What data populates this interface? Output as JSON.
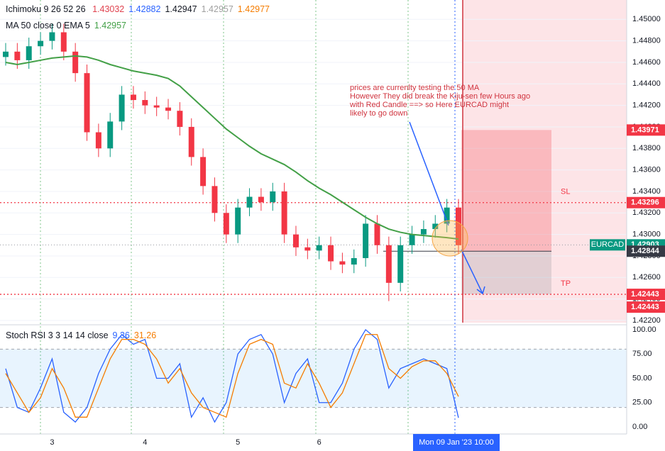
{
  "chart_data": [
    {
      "type": "candlestick",
      "categories": [
        null,
        null,
        null,
        null,
        "3",
        null,
        null,
        null,
        null,
        null,
        null,
        null,
        "4",
        null,
        null,
        null,
        null,
        null,
        null,
        null,
        "5",
        null,
        null,
        null,
        null,
        null,
        null,
        "6",
        null,
        null,
        null,
        null,
        null,
        null,
        null,
        null,
        null,
        null,
        null,
        "Mon 09 Jan '23  10:00"
      ],
      "open": [
        1.4465,
        1.447,
        1.4462,
        1.4475,
        1.448,
        1.4488,
        1.447,
        1.445,
        1.4395,
        1.438,
        1.4405,
        1.443,
        1.4425,
        1.442,
        1.4418,
        1.4415,
        1.44,
        1.4372,
        1.4345,
        1.432,
        1.43,
        1.4325,
        1.4335,
        1.433,
        1.434,
        1.43,
        1.4288,
        1.4285,
        1.429,
        1.4275,
        1.4272,
        1.4278,
        1.431,
        1.429,
        1.4255,
        1.429,
        1.43,
        1.4305,
        1.431,
        1.4325
      ],
      "high": [
        1.4478,
        1.4478,
        1.4483,
        1.4488,
        1.4496,
        1.4496,
        1.4478,
        1.4458,
        1.4403,
        1.4413,
        1.4438,
        1.4438,
        1.4433,
        1.4428,
        1.4426,
        1.4423,
        1.4408,
        1.438,
        1.4353,
        1.4328,
        1.4333,
        1.4343,
        1.4343,
        1.4348,
        1.4348,
        1.4308,
        1.4296,
        1.4298,
        1.4298,
        1.4283,
        1.4286,
        1.4318,
        1.4318,
        1.4298,
        1.4298,
        1.4308,
        1.4313,
        1.4318,
        1.4333,
        1.4333
      ],
      "low": [
        1.4457,
        1.4454,
        1.4454,
        1.4467,
        1.4472,
        1.4462,
        1.4442,
        1.4387,
        1.4372,
        1.4372,
        1.4397,
        1.4417,
        1.4412,
        1.441,
        1.4407,
        1.4392,
        1.4364,
        1.4337,
        1.4312,
        1.4292,
        1.4292,
        1.4317,
        1.4322,
        1.4322,
        1.4292,
        1.428,
        1.4277,
        1.4277,
        1.4267,
        1.4264,
        1.4264,
        1.427,
        1.4282,
        1.4238,
        1.4247,
        1.4282,
        1.4292,
        1.4297,
        1.4302,
        1.4282
      ],
      "close": [
        1.447,
        1.4462,
        1.4475,
        1.448,
        1.4488,
        1.447,
        1.445,
        1.4395,
        1.438,
        1.4405,
        1.443,
        1.4425,
        1.442,
        1.4418,
        1.4415,
        1.44,
        1.4372,
        1.4345,
        1.432,
        1.43,
        1.4325,
        1.4335,
        1.433,
        1.434,
        1.43,
        1.4288,
        1.4285,
        1.429,
        1.4275,
        1.4272,
        1.4278,
        1.431,
        1.429,
        1.4255,
        1.429,
        1.43,
        1.4305,
        1.431,
        1.4325,
        1.429
      ],
      "up_color": "#089981",
      "down_color": "#f23645",
      "series": [
        {
          "name": "MA 50 close 0 EMA 5",
          "color": "#43a047",
          "values": [
            1.446,
            1.4458,
            1.446,
            1.4462,
            1.4464,
            1.4465,
            1.4466,
            1.4465,
            1.4462,
            1.4458,
            1.4455,
            1.4452,
            1.445,
            1.4448,
            1.4445,
            1.4438,
            1.4428,
            1.4418,
            1.4408,
            1.4398,
            1.439,
            1.4382,
            1.4375,
            1.437,
            1.4365,
            1.4358,
            1.435,
            1.4343,
            1.4337,
            1.433,
            1.4323,
            1.4316,
            1.431,
            1.4305,
            1.4302,
            1.43,
            1.4299,
            1.4298,
            1.4297,
            1.42957
          ]
        }
      ],
      "ichimoku": {
        "name": "Ichimoku 9 26 52 26",
        "values": [
          1.43032,
          1.42882,
          1.42947,
          1.42957,
          1.42977
        ],
        "colors": [
          "#e0424f",
          "#2962ff",
          "#131722",
          "#a0a0a0",
          "#f57c00"
        ]
      },
      "ylim": [
        1.4216,
        1.4518
      ],
      "yticks": [
        {
          "value": 1.45,
          "label": "1.45000"
        },
        {
          "value": 1.448,
          "label": "1.44800"
        },
        {
          "value": 1.446,
          "label": "1.44600"
        },
        {
          "value": 1.444,
          "label": "1.44400"
        },
        {
          "value": 1.442,
          "label": "1.44200"
        },
        {
          "value": 1.44,
          "label": "1.44000"
        },
        {
          "value": 1.438,
          "label": "1.43800"
        },
        {
          "value": 1.436,
          "label": "1.43600"
        },
        {
          "value": 1.434,
          "label": "1.43400"
        },
        {
          "value": 1.432,
          "label": "1.43200"
        },
        {
          "value": 1.43,
          "label": "1.43000"
        },
        {
          "value": 1.428,
          "label": "1.42800"
        },
        {
          "value": 1.426,
          "label": "1.42600"
        },
        {
          "value": 1.424,
          "label": "1.42400"
        },
        {
          "value": 1.422,
          "label": "1.42200"
        }
      ],
      "levels": [
        {
          "label": "SL",
          "value": 1.43296,
          "color": "#f23645"
        },
        {
          "label": "TP",
          "value": 1.42443,
          "color": "#f23645"
        }
      ],
      "position": {
        "stop": 1.43971,
        "entry": 1.42844,
        "target": 1.42443
      },
      "price_labels": [
        {
          "value": 1.43971,
          "color": "#f23645"
        },
        {
          "value": 1.43296,
          "color": "#f23645"
        },
        {
          "name": "EURCAD",
          "value": 1.42903,
          "color": "#089981"
        },
        {
          "value": 1.42844,
          "color": "#363a45"
        },
        {
          "value": 1.42443,
          "color": "#f23645"
        },
        {
          "value": 1.42443,
          "color": "#f23645"
        }
      ],
      "annotation": [
        "prices are currenlty testing the 50 MA",
        "However They did break the Kiju-sen few Hours ago",
        "with Red Candle  ==> so Here EURCAD might",
        "likely to go down"
      ]
    },
    {
      "type": "line",
      "title": "Stoch RSI 3 3 14 14 close",
      "series": [
        {
          "color": "#2962ff",
          "values": [
            60,
            20,
            15,
            40,
            70,
            15,
            5,
            20,
            55,
            80,
            95,
            85,
            90,
            50,
            50,
            65,
            10,
            30,
            5,
            25,
            75,
            90,
            95,
            75,
            25,
            55,
            70,
            25,
            25,
            45,
            80,
            100,
            90,
            40,
            60,
            65,
            70,
            65,
            60,
            9.36
          ]
        },
        {
          "color": "#f57c00",
          "values": [
            55,
            35,
            15,
            30,
            60,
            40,
            10,
            10,
            40,
            70,
            90,
            90,
            85,
            70,
            45,
            60,
            35,
            20,
            15,
            10,
            55,
            85,
            90,
            85,
            45,
            40,
            65,
            45,
            20,
            35,
            65,
            95,
            95,
            60,
            50,
            62,
            68,
            68,
            55,
            31.26
          ]
        }
      ],
      "band": [
        20,
        80
      ],
      "ylim": [
        -7.3,
        103.6
      ],
      "yticks": [
        {
          "value": 100,
          "label": "100.00"
        },
        {
          "value": 75,
          "label": "75.00"
        },
        {
          "value": 50,
          "label": "50.00"
        },
        {
          "value": 25,
          "label": "25.00"
        },
        {
          "value": 0,
          "label": "0.00"
        }
      ]
    }
  ]
}
